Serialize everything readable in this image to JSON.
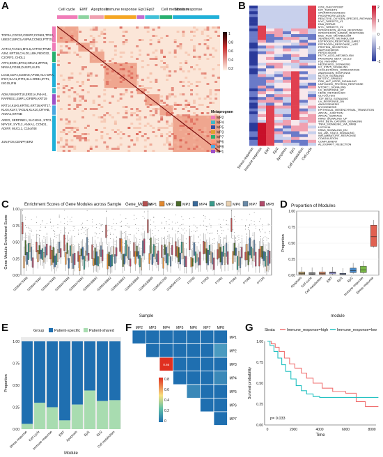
{
  "figure": {
    "panel_letters": [
      "A",
      "B",
      "C",
      "D",
      "E",
      "F",
      "G"
    ]
  },
  "panelA": {
    "metaprograms": [
      "Cell cycle",
      "EMT",
      "Apoptosis",
      "Immune response",
      "Epi1",
      "Epi2",
      "Cell metabolism",
      "Stress response"
    ],
    "gene_labels": [
      "TOP2A,CDC20,CENPF,CCNB1,TPX2,",
      "UBE2C,BIRC5,ASPM,CCNB2,PTTG1",
      "ACTA2,TAGLN,MYL9,ACTG2,TPM2,",
      "A2M, KRT18,CALD1,LBH,FBXO32,",
      "C2ORF3, CHDL1",
      "ATF3,EGR1,BTG2,NR4A1,ZFP36,",
      "NR4A2,FOSB,DUSP1,KLF6",
      "LCN2,CD74,S100A8,APOD,HLA-DRA,",
      "IFI27,SAA1,IFIT3,HLA-DRB1,IFIT1,",
      "ISG15,IFI6",
      "ADM,VIM,KRT18,ERO1A,P4HA1,",
      "RARRES1,EMP1,IGFBP5,KRT19",
      "KRT14,KLK5,KRT81,KRT16,KRT17,",
      "KLK6,KLK7,TAGLN,KLK10,CRYAB,",
      "ANXA1,KRT6B",
      "AREG, SERPINE1, SLC40A1, STC2,",
      "NPY1R, SYTL2, ANXA1, CCND1,",
      "ADIRF, MUCL1, C15orf48",
      "JUN,FOS,CENPF,IER2"
    ],
    "colorbar_ticks": [
      "1",
      "0.8",
      "0.6",
      "0.4",
      "0.2"
    ],
    "legend_title": "Metaprogram",
    "legend_items": [
      "MP2",
      "MP4",
      "MP5",
      "MP3",
      "MP7",
      "MP6",
      "MP8",
      "MP1"
    ],
    "legend_colors": [
      "#f07cb8",
      "#3fb8c8",
      "#2f4fa8",
      "#e0a030",
      "#28b070",
      "#ff9a7a",
      "#4aa8e0",
      "#9d4fc8"
    ]
  },
  "panelB": {
    "pathways": [
      "G2M_CHECKPOINT",
      "E2F_TARGETS",
      "SPERMATOGENESIS",
      "PHOSPHORYLATION",
      "REACTIVE_OXYGEN_SPECIES_PATHWAY",
      "MYC_TARGETS_V1",
      "DNA_REPAIR",
      "MYC_TARGETS_V2",
      "INTERFERON_ALPHA_RESPONSE",
      "INTERFERON_GAMMA_RESPONSE",
      "BILE_ACID_METABOLISM",
      "XENOBIOTIC_METABOLISM",
      "ESTROGEN_RESPONSE_EARLY",
      "ESTROGEN_RESPONSE_LATE",
      "PROTEIN_SECRETION",
      "ADIPOGENESIS",
      "PEROXISOME",
      "FATTY_ACID_METABOLISM",
      "PANCREAS_BETA_CELLS",
      "P53_PATHWAY",
      "HEDGEHOG_SIGNALING",
      "IL2_STAT5_SIGNALING",
      "CHOLESTEROL_HOMEOSTASIS",
      "ANDROGEN_RESPONSE",
      "NOTCH_SIGNALING",
      "MITOTIC_SPINDLE",
      "PI3K_AKT_MTOR_SIGNALING",
      "UNFOLDED_PROTEIN_RESPONSE",
      "MTORC1_SIGNALING",
      "UV_RESPONSE_UP",
      "HEME_METABOLISM",
      "GLYCOLYSIS",
      "TGF_BETA_SIGNALING",
      "UV_RESPONSE_DN",
      "ANGIOGENESIS",
      "MYOGENESIS",
      "EPITHELIAL_MESENCHYMAL_TRANSITION",
      "APICAL_JUNCTION",
      "APICAL_SURFACE",
      "KRAS_SIGNALING_UP",
      "WNT_BETA_CATENIN_SIGNALING",
      "TNFA_SIGNALING_VIA_NFKB",
      "HYPOXIA",
      "KRAS_SIGNALING_DN",
      "IL6_JAK_STAT3_SIGNALING",
      "INFLAMMATORY_RESPONSE",
      "COAGULATION",
      "COMPLEMENT",
      "ALLOGRAFT_REJECTION"
    ],
    "columns": [
      "Stress response",
      "Immune response",
      "EMT",
      "Epi2",
      "Apoptosis",
      "Epi1",
      "Cell metabolism",
      "Cell cycle"
    ],
    "colorbar_ticks": [
      "2",
      "1",
      "0",
      "-1",
      "-2"
    ]
  },
  "panelC": {
    "title": "Enrichment Scores of Gene Modules across Sample",
    "legend_title": "Gene_Module",
    "modules": [
      "MP1",
      "MP2",
      "MP3",
      "MP4",
      "MP5",
      "MP6",
      "MP7",
      "MP8"
    ],
    "module_colors": [
      "#b45050",
      "#e08830",
      "#4a6a2a",
      "#3a6a9a",
      "#3a9a8a",
      "#e8d0b0",
      "#6a8aa8",
      "#b04a6a"
    ],
    "ylabel": "Gene Module Enrichment Score",
    "xlabel": "Sample",
    "yticks": [
      "1.00",
      "0.75",
      "0.50",
      "0.25",
      "0.00"
    ],
    "samples": [
      "GSM4476486",
      "GSM4476487",
      "GSM4476488",
      "GSM4476489",
      "GSM4476490",
      "GSM5338880",
      "GSM5338882",
      "GSM5338883",
      "GSM5338884",
      "GSM5338885",
      "GSM5457205",
      "GSM5457211",
      "PT039",
      "PT058",
      "PT081",
      "PT084",
      "PT089",
      "PT126"
    ]
  },
  "panelD": {
    "title": "Proportion of Modules",
    "ylabel": "Proportion",
    "xlabel": "module",
    "yticks": [
      "1.00",
      "0.75",
      "0.50",
      "0.25",
      "0.00"
    ],
    "modules": [
      "Apoptosis",
      "Cell cycle",
      "Cell metabolism",
      "EMT",
      "Epi1",
      "Epi2",
      "Immune response",
      "Stress response"
    ],
    "colors": [
      "#b8a070",
      "#8a8a8a",
      "#d08868",
      "#9090c8",
      "#7a8ab8",
      "#4a8ac8",
      "#7ab848",
      "#e06050"
    ]
  },
  "panelE": {
    "legend_title": "Group",
    "legend_items": [
      "Patient-specific",
      "Patient-shared"
    ],
    "colors": [
      "#1f6fb0",
      "#a8dcb0"
    ],
    "ylabel": "Proportion",
    "xlabel": "Module",
    "yticks": [
      "1.00",
      "0.75",
      "0.50",
      "0.25",
      "0.00"
    ],
    "categories": [
      "Stress response",
      "Cell cycle",
      "Immune response",
      "EMT",
      "Apoptosis",
      "Epi1",
      "Epi2",
      "Cell metabolism"
    ],
    "shared": [
      0.06,
      0.3,
      0.25,
      0.1,
      0.28,
      0.44,
      0.32,
      0.33
    ]
  },
  "panelF": {
    "col_labels": [
      "MP2",
      "MP3",
      "MP4",
      "MP5",
      "MP6",
      "MP7",
      "MP8"
    ],
    "row_labels": [
      "MP1",
      "MP2",
      "MP3",
      "MP4",
      "MP5",
      "MP6",
      "MP7"
    ],
    "highlight_value": "0.66",
    "colorbar_ticks": [
      "0.8",
      "0.6",
      "0.4",
      "0.2",
      "0"
    ]
  },
  "panelG": {
    "legend_title": "Strata",
    "legend_items": [
      "Immune_response=high",
      "Immune_response=low"
    ],
    "colors": [
      "#f07070",
      "#20c0c0"
    ],
    "ylabel": "Survival probability",
    "xlabel": "Time",
    "yticks": [
      "1.00",
      "0.75",
      "0.50",
      "0.25",
      "0.00"
    ],
    "xticks": [
      "0",
      "2000",
      "4000",
      "6000",
      "8000"
    ],
    "pvalue": "p= 0.033"
  }
}
